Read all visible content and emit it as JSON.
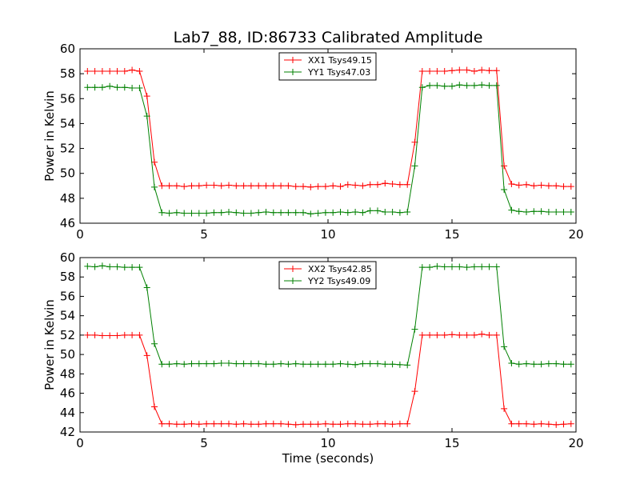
{
  "figure": {
    "title": "Lab7_88, ID:86733 Calibrated Amplitude",
    "xlabel": "Time (seconds)"
  },
  "chart_data": [
    {
      "type": "line",
      "title": "Lab7_88, ID:86733 Calibrated Amplitude",
      "xlabel": "",
      "ylabel": "Power in Kelvin",
      "xlim": [
        0,
        20
      ],
      "ylim": [
        46,
        60
      ],
      "xticks": [
        0,
        5,
        10,
        15,
        20
      ],
      "yticks": [
        46,
        48,
        50,
        52,
        54,
        56,
        58,
        60
      ],
      "grid": false,
      "legend_position": "top-center",
      "x": [
        0.3,
        0.6,
        0.9,
        1.2,
        1.5,
        1.8,
        2.1,
        2.4,
        2.7,
        3.0,
        3.3,
        3.6,
        3.9,
        4.2,
        4.5,
        4.8,
        5.1,
        5.4,
        5.7,
        6.0,
        6.3,
        6.6,
        6.9,
        7.2,
        7.5,
        7.8,
        8.1,
        8.4,
        8.7,
        9.0,
        9.3,
        9.6,
        9.9,
        10.2,
        10.5,
        10.8,
        11.1,
        11.4,
        11.7,
        12.0,
        12.3,
        12.6,
        12.9,
        13.2,
        13.5,
        13.8,
        14.1,
        14.4,
        14.7,
        15.0,
        15.3,
        15.6,
        15.9,
        16.2,
        16.5,
        16.8,
        17.1,
        17.4,
        17.7,
        18.0,
        18.3,
        18.6,
        18.9,
        19.2,
        19.5,
        19.8
      ],
      "series": [
        {
          "name": "XX1 Tsys49.15",
          "color": "#ff0000",
          "values": [
            58.2,
            58.2,
            58.2,
            58.2,
            58.2,
            58.2,
            58.3,
            58.2,
            56.2,
            50.9,
            49.0,
            49.0,
            49.0,
            48.95,
            49.0,
            49.0,
            49.05,
            49.05,
            49.0,
            49.05,
            49.0,
            49.0,
            49.0,
            49.0,
            49.0,
            49.0,
            49.0,
            49.0,
            48.95,
            48.95,
            48.9,
            48.95,
            48.95,
            49.0,
            48.95,
            49.1,
            49.05,
            49.0,
            49.1,
            49.1,
            49.2,
            49.15,
            49.1,
            49.1,
            52.5,
            58.2,
            58.2,
            58.2,
            58.2,
            58.25,
            58.3,
            58.3,
            58.2,
            58.3,
            58.25,
            58.25,
            50.6,
            49.15,
            49.05,
            49.1,
            49.0,
            49.05,
            49.0,
            49.0,
            48.95,
            48.95
          ]
        },
        {
          "name": "YY1 Tsys47.03",
          "color": "#008000",
          "values": [
            56.9,
            56.9,
            56.9,
            57.0,
            56.9,
            56.9,
            56.85,
            56.85,
            54.6,
            48.9,
            46.85,
            46.8,
            46.85,
            46.8,
            46.8,
            46.8,
            46.8,
            46.85,
            46.85,
            46.9,
            46.85,
            46.8,
            46.8,
            46.85,
            46.9,
            46.85,
            46.85,
            46.85,
            46.85,
            46.85,
            46.75,
            46.8,
            46.85,
            46.85,
            46.9,
            46.85,
            46.9,
            46.85,
            47.0,
            47.0,
            46.9,
            46.9,
            46.85,
            46.9,
            50.6,
            56.9,
            57.05,
            57.05,
            57.0,
            57.0,
            57.1,
            57.05,
            57.05,
            57.1,
            57.05,
            57.05,
            48.7,
            47.05,
            46.95,
            46.9,
            46.95,
            46.95,
            46.9,
            46.9,
            46.9,
            46.9
          ]
        }
      ]
    },
    {
      "type": "line",
      "title": "",
      "xlabel": "Time (seconds)",
      "ylabel": "Power in Kelvin",
      "xlim": [
        0,
        20
      ],
      "ylim": [
        42,
        60
      ],
      "xticks": [
        0,
        5,
        10,
        15,
        20
      ],
      "yticks": [
        42,
        44,
        46,
        48,
        50,
        52,
        54,
        56,
        58,
        60
      ],
      "grid": false,
      "legend_position": "top-center",
      "x": [
        0.3,
        0.6,
        0.9,
        1.2,
        1.5,
        1.8,
        2.1,
        2.4,
        2.7,
        3.0,
        3.3,
        3.6,
        3.9,
        4.2,
        4.5,
        4.8,
        5.1,
        5.4,
        5.7,
        6.0,
        6.3,
        6.6,
        6.9,
        7.2,
        7.5,
        7.8,
        8.1,
        8.4,
        8.7,
        9.0,
        9.3,
        9.6,
        9.9,
        10.2,
        10.5,
        10.8,
        11.1,
        11.4,
        11.7,
        12.0,
        12.3,
        12.6,
        12.9,
        13.2,
        13.5,
        13.8,
        14.1,
        14.4,
        14.7,
        15.0,
        15.3,
        15.6,
        15.9,
        16.2,
        16.5,
        16.8,
        17.1,
        17.4,
        17.7,
        18.0,
        18.3,
        18.6,
        18.9,
        19.2,
        19.5,
        19.8
      ],
      "series": [
        {
          "name": "XX2 Tsys42.85",
          "color": "#ff0000",
          "values": [
            52.0,
            52.0,
            51.95,
            51.95,
            51.95,
            52.0,
            52.0,
            52.0,
            49.9,
            44.6,
            42.85,
            42.85,
            42.8,
            42.8,
            42.85,
            42.8,
            42.85,
            42.85,
            42.85,
            42.85,
            42.8,
            42.85,
            42.8,
            42.8,
            42.85,
            42.85,
            42.85,
            42.8,
            42.75,
            42.8,
            42.8,
            42.8,
            42.85,
            42.8,
            42.8,
            42.85,
            42.85,
            42.8,
            42.8,
            42.85,
            42.85,
            42.8,
            42.85,
            42.85,
            46.2,
            52.0,
            52.0,
            52.0,
            52.0,
            52.05,
            52.0,
            52.0,
            52.0,
            52.1,
            52.0,
            52.0,
            44.4,
            42.85,
            42.85,
            42.85,
            42.8,
            42.85,
            42.8,
            42.75,
            42.8,
            42.85
          ]
        },
        {
          "name": "YY2 Tsys49.09",
          "color": "#008000",
          "values": [
            59.1,
            59.05,
            59.15,
            59.05,
            59.05,
            59.0,
            59.0,
            59.0,
            56.9,
            51.1,
            49.0,
            49.0,
            49.05,
            49.0,
            49.05,
            49.05,
            49.05,
            49.05,
            49.1,
            49.1,
            49.05,
            49.05,
            49.05,
            49.05,
            49.0,
            49.0,
            49.05,
            49.0,
            49.05,
            49.0,
            49.0,
            49.0,
            49.0,
            49.0,
            49.05,
            49.0,
            48.95,
            49.05,
            49.05,
            49.05,
            49.0,
            49.0,
            48.95,
            48.9,
            52.6,
            59.0,
            59.0,
            59.1,
            59.05,
            59.05,
            59.05,
            59.0,
            59.05,
            59.05,
            59.05,
            59.05,
            50.8,
            49.1,
            49.0,
            49.05,
            49.0,
            49.0,
            49.05,
            49.05,
            49.0,
            49.0
          ]
        }
      ]
    }
  ]
}
